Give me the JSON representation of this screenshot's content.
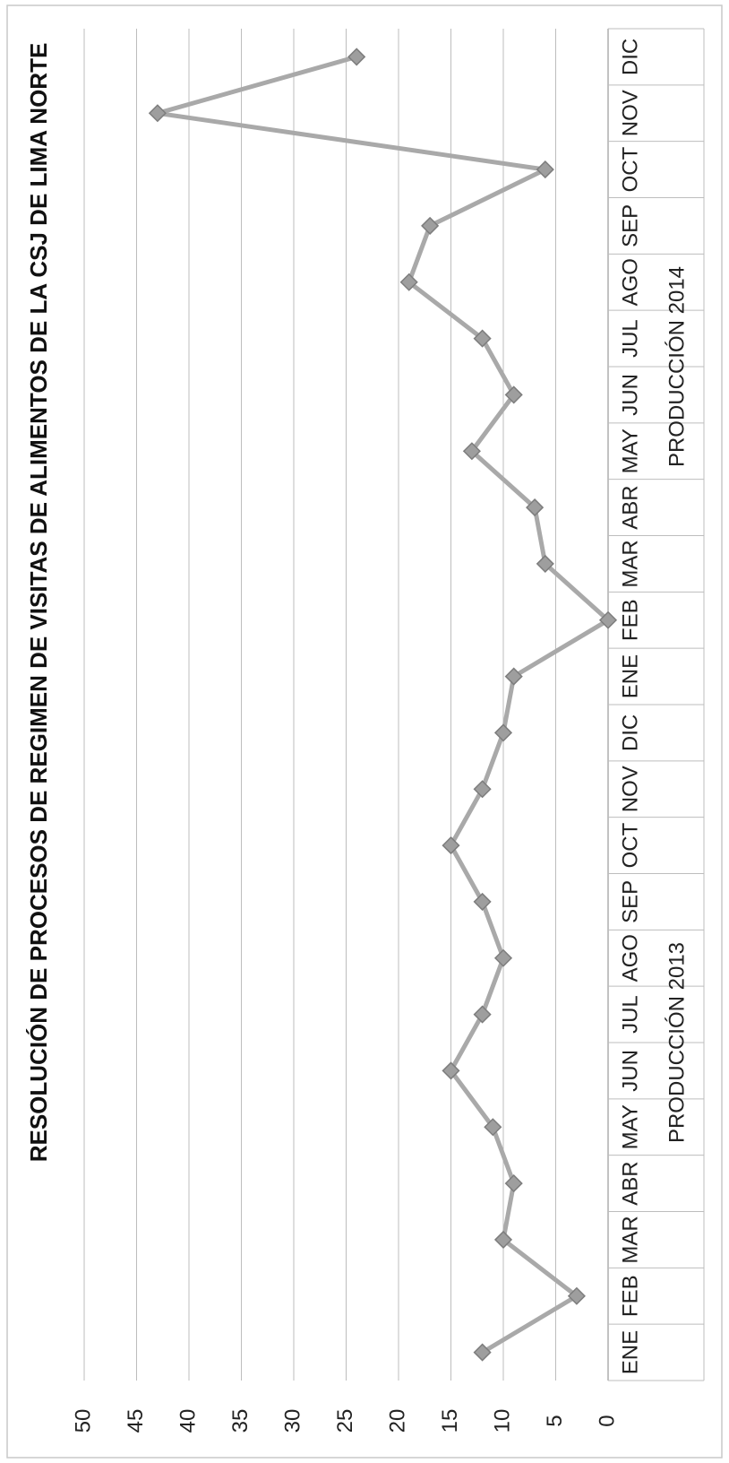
{
  "chart_data": {
    "type": "line",
    "title": "RESOLUCIÓN DE PROCESOS DE REGIMEN DE VISITAS DE ALIMENTOS DE LA CSJ DE LIMA NORTE",
    "categories": [
      "ENE",
      "FEB",
      "MAR",
      "ABR",
      "MAY",
      "JUN",
      "JUL",
      "AGO",
      "SEP",
      "OCT",
      "NOV",
      "DIC",
      "ENE",
      "FEB",
      "MAR",
      "ABR",
      "MAY",
      "JUN",
      "JUL",
      "AGO",
      "SEP",
      "OCT",
      "NOV",
      "DIC"
    ],
    "groups": [
      {
        "label": "PRODUCCIÓN 2013",
        "start": 0,
        "end": 11
      },
      {
        "label": "PRODUCCIÓN 2014",
        "start": 12,
        "end": 23
      }
    ],
    "series": [
      {
        "values": [
          12,
          3,
          10,
          9,
          11,
          15,
          12,
          10,
          12,
          15,
          12,
          10,
          9,
          0,
          6,
          7,
          13,
          9,
          12,
          19,
          17,
          6,
          43,
          24
        ]
      }
    ],
    "y_ticks": [
      0,
      5,
      10,
      15,
      20,
      25,
      30,
      35,
      40,
      45,
      50
    ],
    "ylim": [
      0,
      50
    ],
    "grid": true,
    "orientation": "rotated 90° counter-clockwise on the page",
    "legend": "none",
    "colors": {
      "line": "#a9a9a9",
      "marker": "#9e9e9e",
      "grid": "#bdbdbd"
    }
  }
}
